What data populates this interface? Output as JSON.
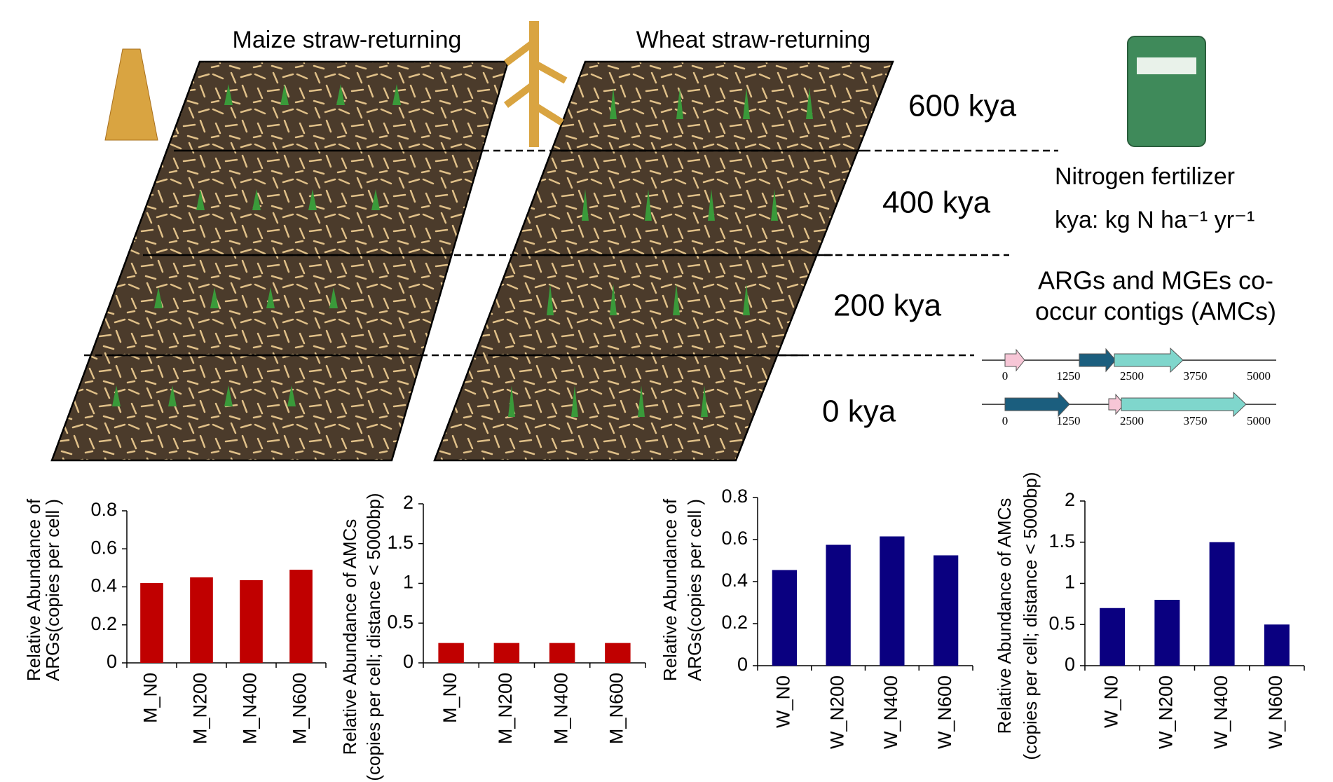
{
  "diagram": {
    "panels": [
      "Maize straw-returning",
      "Wheat straw-returning"
    ],
    "levels": [
      "600 kya",
      "400 kya",
      "200 kya",
      "0 kya"
    ],
    "legend_title": "Nitrogen fertilizer",
    "unit_note": "kya: kg N ha⁻¹ yr⁻¹",
    "amc_title": [
      "ARGs and MGEs co-",
      "occur contigs (AMCs)"
    ],
    "contig_ticks": [
      0,
      1250,
      2500,
      3750,
      5000
    ]
  },
  "chart_data": [
    {
      "type": "bar",
      "y_label": [
        "Relative Abundance of",
        "ARGs(copies per cell )"
      ],
      "categories": [
        "M_N0",
        "M_N200",
        "M_N400",
        "M_N600"
      ],
      "values": [
        0.42,
        0.45,
        0.435,
        0.49
      ],
      "color": "#c00000",
      "ylim": [
        0,
        0.8
      ],
      "yticks": [
        0,
        0.2,
        0.4,
        0.6,
        0.8
      ]
    },
    {
      "type": "bar",
      "y_label": [
        "Relative Abundance of AMCs",
        "(copies per cell; distance < 5000bp)"
      ],
      "categories": [
        "M_N0",
        "M_N200",
        "M_N400",
        "M_N600"
      ],
      "values": [
        0.25,
        0.25,
        0.25,
        0.25
      ],
      "color": "#c00000",
      "ylim": [
        0,
        2
      ],
      "yticks": [
        0,
        0.5,
        1,
        1.5,
        2
      ]
    },
    {
      "type": "bar",
      "y_label": [
        "Relative Abundance of",
        "ARGs(copies per cell )"
      ],
      "categories": [
        "W_N0",
        "W_N200",
        "W_N400",
        "W_N600"
      ],
      "values": [
        0.455,
        0.575,
        0.615,
        0.525
      ],
      "color": "#0a0080",
      "ylim": [
        0,
        0.8
      ],
      "yticks": [
        0,
        0.2,
        0.4,
        0.6,
        0.8
      ]
    },
    {
      "type": "bar",
      "y_label": [
        "Relative Abundance of AMCs",
        "(copies per cell; distance < 5000bp)"
      ],
      "categories": [
        "W_N0",
        "W_N200",
        "W_N400",
        "W_N600"
      ],
      "values": [
        0.7,
        0.8,
        1.5,
        0.5
      ],
      "color": "#0a0080",
      "ylim": [
        0,
        2
      ],
      "yticks": [
        0,
        0.5,
        1,
        1.5,
        2
      ]
    }
  ]
}
